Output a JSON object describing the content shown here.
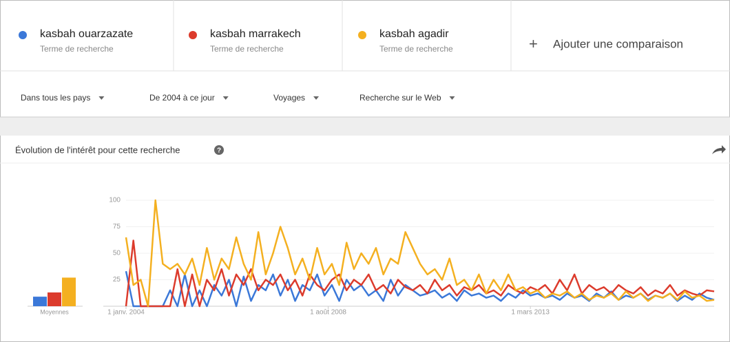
{
  "term_subtitles": [
    "Terme de recherche",
    "Terme de recherche",
    "Terme de recherche"
  ],
  "add_comparison": "Ajouter une comparaison",
  "filters": [
    "Dans tous les pays",
    "De 2004 à ce jour",
    "Voyages",
    "Recherche sur le Web"
  ],
  "card_title": "Évolution de l'intérêt pour cette recherche",
  "chart_data": {
    "type": "line",
    "averages": {
      "label": "Moyennes",
      "values": [
        9,
        13,
        27
      ]
    },
    "x": [
      0,
      2,
      4,
      6,
      8,
      10,
      12,
      14,
      16,
      18,
      20,
      22,
      24,
      26,
      28,
      30,
      32,
      34,
      36,
      38,
      40,
      42,
      44,
      46,
      48,
      50,
      52,
      54,
      56,
      58,
      60,
      62,
      64,
      66,
      68,
      70,
      72,
      74,
      76,
      78,
      80,
      82,
      84,
      86,
      88,
      90,
      92,
      94,
      96,
      98,
      100,
      102,
      104,
      106,
      108,
      110,
      112,
      114,
      116,
      118,
      120,
      122,
      124,
      126,
      128,
      130,
      132,
      134,
      136,
      138,
      140,
      142,
      144,
      146,
      148,
      150,
      152,
      154,
      156,
      158,
      160
    ],
    "xlim": [
      0,
      160
    ],
    "xticks": [
      {
        "value": 0,
        "label": "1 janv. 2004"
      },
      {
        "value": 55,
        "label": "1 août 2008"
      },
      {
        "value": 110,
        "label": "1 mars 2013"
      }
    ],
    "ylim": [
      0,
      100
    ],
    "yticks": [
      25,
      50,
      75,
      100
    ],
    "grid": true,
    "series": [
      {
        "name": "kasbah ouarzazate",
        "color": "#3b78d8",
        "values": [
          33,
          0,
          0,
          0,
          0,
          0,
          15,
          0,
          30,
          0,
          15,
          0,
          20,
          10,
          25,
          0,
          28,
          5,
          20,
          15,
          30,
          10,
          25,
          5,
          20,
          15,
          30,
          10,
          20,
          5,
          25,
          15,
          20,
          10,
          15,
          5,
          25,
          10,
          20,
          15,
          10,
          12,
          15,
          8,
          12,
          5,
          15,
          10,
          12,
          8,
          10,
          5,
          12,
          8,
          15,
          10,
          12,
          8,
          10,
          6,
          12,
          8,
          10,
          5,
          12,
          8,
          14,
          6,
          10,
          8,
          12,
          6,
          10,
          8,
          12,
          5,
          10,
          6,
          12,
          8,
          6
        ]
      },
      {
        "name": "kasbah marrakech",
        "color": "#dc3b2c",
        "values": [
          0,
          62,
          0,
          0,
          0,
          0,
          0,
          35,
          0,
          30,
          0,
          25,
          15,
          35,
          10,
          30,
          20,
          35,
          15,
          25,
          20,
          30,
          15,
          25,
          10,
          30,
          20,
          15,
          25,
          30,
          15,
          25,
          20,
          30,
          15,
          20,
          12,
          25,
          18,
          15,
          20,
          12,
          25,
          15,
          20,
          10,
          18,
          15,
          20,
          12,
          15,
          10,
          20,
          15,
          12,
          18,
          15,
          20,
          12,
          25,
          15,
          30,
          12,
          20,
          15,
          18,
          12,
          20,
          15,
          12,
          18,
          10,
          15,
          12,
          20,
          10,
          15,
          12,
          10,
          15,
          14
        ]
      },
      {
        "name": "kasbah agadir",
        "color": "#f4b020",
        "values": [
          65,
          20,
          25,
          0,
          100,
          40,
          35,
          40,
          30,
          45,
          20,
          55,
          25,
          45,
          35,
          65,
          40,
          25,
          70,
          30,
          50,
          75,
          55,
          30,
          45,
          25,
          55,
          30,
          40,
          20,
          60,
          35,
          50,
          40,
          55,
          30,
          45,
          40,
          70,
          55,
          40,
          30,
          35,
          25,
          45,
          20,
          25,
          15,
          30,
          12,
          25,
          15,
          30,
          15,
          18,
          12,
          15,
          8,
          12,
          10,
          14,
          8,
          12,
          6,
          10,
          8,
          12,
          6,
          14,
          8,
          12,
          5,
          10,
          8,
          12,
          6,
          14,
          8,
          10,
          5,
          6
        ]
      }
    ]
  }
}
